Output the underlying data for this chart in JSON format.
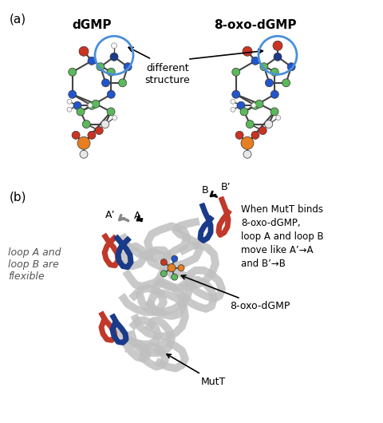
{
  "panel_a_label": "(a)",
  "panel_b_label": "(b)",
  "dgmp_label": "dGMP",
  "oxo_label": "8-oxo-dGMP",
  "diff_text": "different\nstructure",
  "loop_text": "loop A and\nloop B are\nflexible",
  "when_text": "When MutT binds\n8-oxo-dGMP,\nloop A and loop B\nmove like A’→A\nand B’→B",
  "oxodgmp_annot": "8-oxo-dGMP",
  "mutt_annot": "MutT",
  "label_A": "A",
  "label_Ap": "A’",
  "label_B": "B",
  "label_Bp": "B’",
  "bg_color": "#ffffff",
  "circle_color": "#4a90d9",
  "arrow_color": "#222222",
  "loop_blue": "#1a3a8a",
  "loop_red": "#c0392b",
  "protein_gray": "#c0c0c0",
  "arrow_gray": "#888888"
}
